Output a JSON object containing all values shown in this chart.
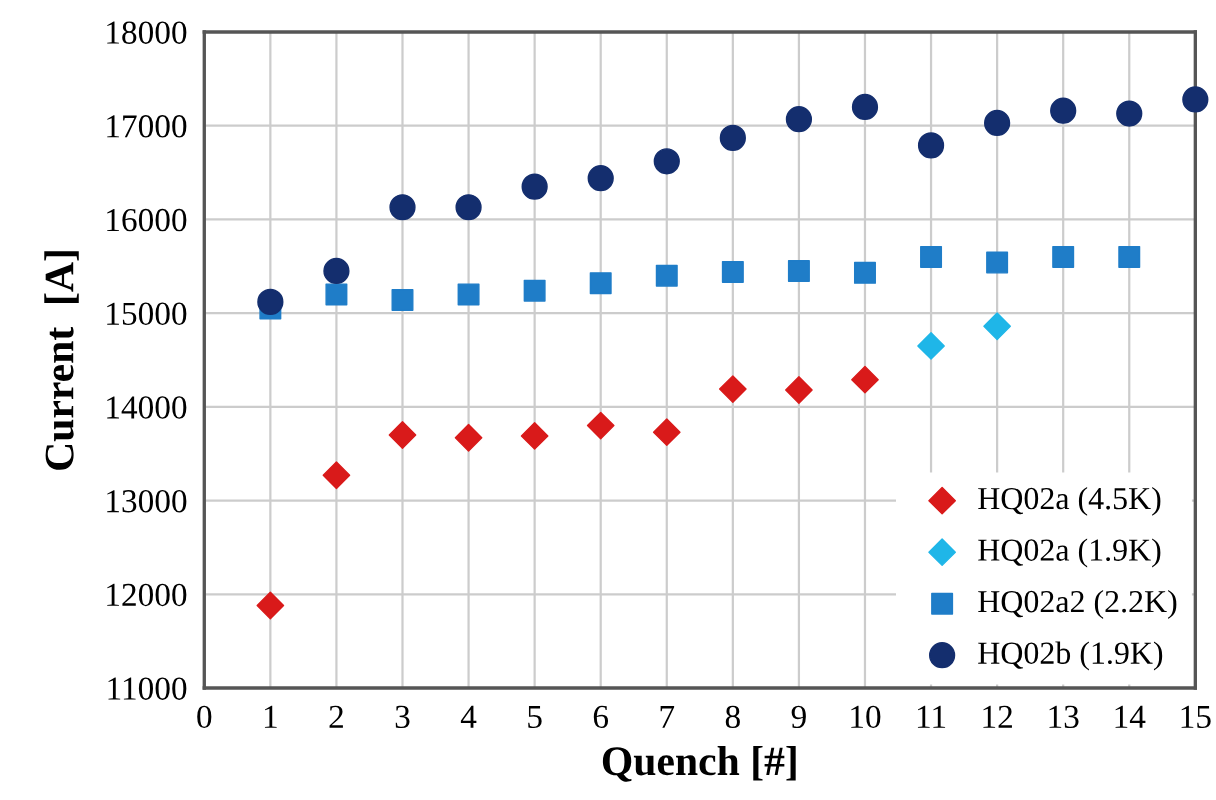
{
  "chart_data": {
    "type": "scatter",
    "xlabel": "Quench [#]",
    "ylabel": "Current  [A]",
    "xlim": [
      0,
      15
    ],
    "xticks": [
      0,
      1,
      2,
      3,
      4,
      5,
      6,
      7,
      8,
      9,
      10,
      11,
      12,
      13,
      14,
      15
    ],
    "ylim": [
      11000,
      18000
    ],
    "yticks": [
      11000,
      12000,
      13000,
      14000,
      15000,
      16000,
      17000,
      18000
    ],
    "grid": true,
    "legend": "bottom right",
    "series": [
      {
        "name": "HQ02a (4.5K)",
        "color": "#d91a1a",
        "marker": "diamond",
        "x": [
          1,
          2,
          3,
          4,
          5,
          6,
          7,
          8,
          9,
          10
        ],
        "values": [
          11880,
          13270,
          13700,
          13670,
          13690,
          13800,
          13730,
          14190,
          14180,
          14290
        ]
      },
      {
        "name": "HQ02a (1.9K)",
        "color": "#1fb6e8",
        "marker": "diamond",
        "x": [
          11,
          12
        ],
        "values": [
          14650,
          14860
        ]
      },
      {
        "name": "HQ02a2 (2.2K)",
        "color": "#1f7dc8",
        "marker": "square",
        "x": [
          1,
          2,
          3,
          4,
          5,
          6,
          7,
          8,
          9,
          10,
          11,
          12,
          13,
          14
        ],
        "values": [
          15050,
          15200,
          15140,
          15200,
          15240,
          15320,
          15400,
          15440,
          15450,
          15430,
          15600,
          15540,
          15600,
          15600
        ]
      },
      {
        "name": "HQ02b (1.9K)",
        "color": "#142e6e",
        "marker": "circle",
        "x": [
          1,
          2,
          3,
          4,
          5,
          6,
          7,
          8,
          9,
          10,
          11,
          12,
          13,
          14,
          15
        ],
        "values": [
          15120,
          15450,
          16130,
          16130,
          16350,
          16440,
          16620,
          16870,
          17070,
          17200,
          16790,
          17030,
          17160,
          17130,
          17280
        ]
      }
    ]
  }
}
